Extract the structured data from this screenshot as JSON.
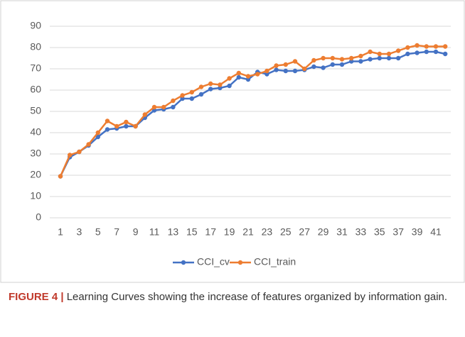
{
  "chart_data": {
    "type": "line",
    "categories": [
      1,
      null,
      3,
      null,
      5,
      null,
      7,
      null,
      9,
      null,
      11,
      null,
      13,
      null,
      15,
      null,
      17,
      null,
      19,
      null,
      21,
      null,
      23,
      null,
      25,
      null,
      27,
      null,
      29,
      null,
      31,
      null,
      33,
      null,
      35,
      null,
      37,
      null,
      39,
      null,
      41,
      null
    ],
    "series": [
      {
        "name": "CCI_cv",
        "color": "#4472c4",
        "values": [
          19.5,
          28.5,
          31,
          34,
          38,
          41.5,
          42,
          43,
          43,
          47,
          50.5,
          51,
          52,
          56,
          56,
          58,
          60.5,
          61,
          62,
          66,
          65,
          68.5,
          67.5,
          69.5,
          69,
          69,
          69.5,
          71,
          70.5,
          72,
          72,
          73.5,
          73.5,
          74.5,
          75,
          75,
          75,
          77,
          77.5,
          78,
          78,
          77
        ]
      },
      {
        "name": "CCI_train",
        "color": "#ed7d31",
        "values": [
          19.5,
          29.5,
          31,
          34.5,
          40,
          45.5,
          43,
          45,
          43,
          48.5,
          52,
          52,
          55,
          57.5,
          59,
          61.5,
          63,
          62.5,
          65.5,
          68,
          66.5,
          67.5,
          69,
          71.5,
          72,
          73.5,
          70,
          74,
          75,
          75,
          74.5,
          75,
          76,
          78,
          77,
          77,
          78.5,
          80,
          81,
          80.5,
          80.5,
          80.5
        ]
      }
    ],
    "ylim": [
      0,
      90
    ],
    "yticks": [
      0,
      10,
      20,
      30,
      40,
      50,
      60,
      70,
      80,
      90
    ],
    "grid": true,
    "legend": "bottom"
  },
  "caption": {
    "label": "FIGURE 4 |",
    "text": "Learning Curves showing the increase of features organized by information gain."
  }
}
